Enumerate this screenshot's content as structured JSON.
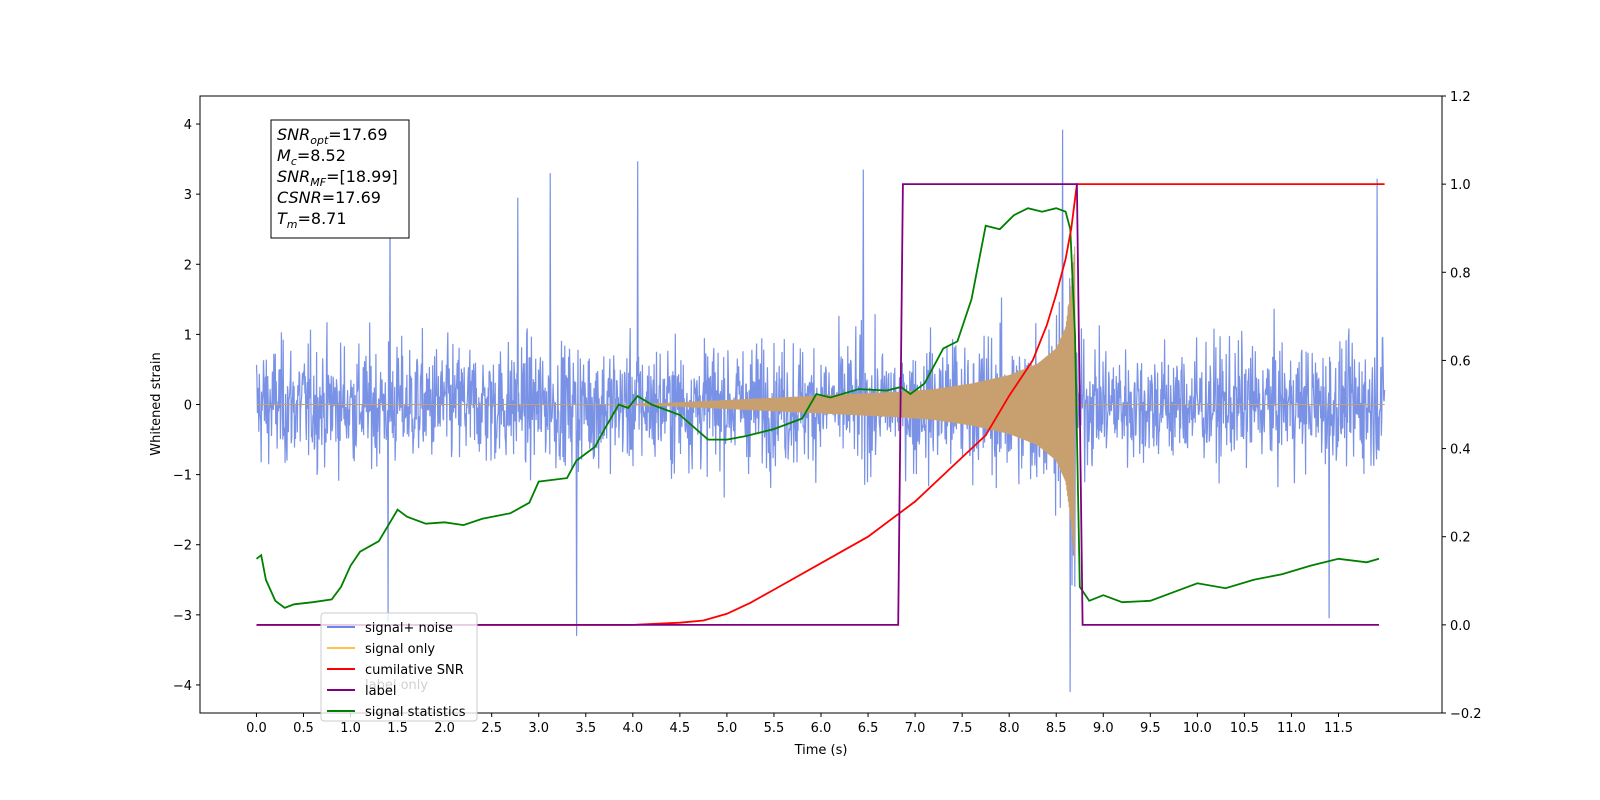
{
  "chart_data": {
    "type": "line",
    "xlabel": "Time (s)",
    "ylabel": "Whitened strain",
    "xlim": [
      -0.6,
      12.6
    ],
    "ylim": [
      -4.4,
      4.4
    ],
    "y2lim": [
      -0.2,
      1.2
    ],
    "x_ticks": [
      "0.0",
      "0.5",
      "1.0",
      "1.5",
      "2.0",
      "2.5",
      "3.0",
      "3.5",
      "4.0",
      "4.5",
      "5.0",
      "5.5",
      "6.0",
      "6.5",
      "7.0",
      "7.5",
      "8.0",
      "8.5",
      "9.0",
      "9.5",
      "10.0",
      "10.5",
      "11.0",
      "11.5"
    ],
    "y_ticks": [
      "-4",
      "-3",
      "-2",
      "-1",
      "0",
      "1",
      "2",
      "3",
      "4"
    ],
    "y2_ticks": [
      "-0.2",
      "0.0",
      "0.2",
      "0.4",
      "0.6",
      "0.8",
      "1.0",
      "1.2"
    ],
    "info_box": [
      {
        "base": "SNR",
        "sub": "opt",
        "rest": "=17.69"
      },
      {
        "base": "M",
        "sub": "c",
        "rest": "=8.52"
      },
      {
        "base": "SNR",
        "sub": "MF",
        "rest": "=[18.99]"
      },
      {
        "base": "CSNR",
        "sub": "",
        "rest": "=17.69"
      },
      {
        "base": "T",
        "sub": "m",
        "rest": "=8.71"
      }
    ],
    "legend": {
      "placement": "lower-left",
      "entries": [
        {
          "label": "signal+ noise",
          "color": "#6b86e3"
        },
        {
          "label": "signal only",
          "color": "#ffc04d"
        },
        {
          "label": "cumilative SNR",
          "color": "#ff0000"
        },
        {
          "label": "label",
          "color": "#800080"
        },
        {
          "label": "signal statistics",
          "color": "#008000"
        }
      ],
      "ghost_text": "label only"
    },
    "series": [
      {
        "name": "signal+ noise",
        "color": "#6b86e3",
        "axis": "left",
        "t_range": [
          0.0,
          11.99
        ],
        "noise_band": [
          -1.6,
          1.6
        ],
        "spikes": [
          {
            "x": 1.42,
            "y": 2.85
          },
          {
            "x": 2.78,
            "y": 2.95
          },
          {
            "x": 3.12,
            "y": 3.3
          },
          {
            "x": 4.05,
            "y": 3.47
          },
          {
            "x": 6.45,
            "y": 3.35
          },
          {
            "x": 8.57,
            "y": 3.92
          },
          {
            "x": 11.91,
            "y": 3.22
          },
          {
            "x": 1.4,
            "y": -3.1
          },
          {
            "x": 3.4,
            "y": -3.3
          },
          {
            "x": 8.65,
            "y": -4.1
          },
          {
            "x": 11.4,
            "y": -3.05
          }
        ]
      },
      {
        "name": "signal only",
        "color": "#c8a070",
        "axis": "left",
        "envelope_t": [
          6.8,
          7.2,
          7.6,
          8.0,
          8.3,
          8.5,
          8.6,
          8.65,
          8.7
        ],
        "envelope_amp": [
          0.18,
          0.22,
          0.3,
          0.42,
          0.58,
          0.8,
          1.1,
          1.6,
          2.3
        ]
      },
      {
        "name": "cumilative SNR",
        "color": "#ff0000",
        "axis": "right",
        "x": [
          0.0,
          4.0,
          4.5,
          4.75,
          5.0,
          5.25,
          5.5,
          6.0,
          6.5,
          7.0,
          7.5,
          7.75,
          8.0,
          8.25,
          8.4,
          8.5,
          8.6,
          8.66,
          8.72,
          11.99
        ],
        "y": [
          0.0,
          0.0,
          0.005,
          0.01,
          0.025,
          0.05,
          0.08,
          0.14,
          0.2,
          0.28,
          0.38,
          0.43,
          0.52,
          0.6,
          0.68,
          0.75,
          0.83,
          0.9,
          1.0,
          1.0
        ]
      },
      {
        "name": "label",
        "color": "#800080",
        "axis": "right",
        "x": [
          0.0,
          6.82,
          6.87,
          8.72,
          8.78,
          11.93
        ],
        "y": [
          0.0,
          0.0,
          1.0,
          1.0,
          0.0,
          0.0
        ]
      },
      {
        "name": "signal statistics",
        "color": "#008000",
        "axis": "left",
        "x": [
          0.0,
          0.05,
          0.1,
          0.2,
          0.3,
          0.4,
          0.6,
          0.8,
          0.9,
          1.0,
          1.1,
          1.3,
          1.5,
          1.6,
          1.8,
          2.0,
          2.2,
          2.4,
          2.7,
          2.9,
          3.0,
          3.3,
          3.4,
          3.6,
          3.7,
          3.85,
          3.95,
          4.05,
          4.2,
          4.5,
          4.8,
          5.0,
          5.2,
          5.5,
          5.8,
          5.95,
          6.1,
          6.4,
          6.7,
          6.85,
          6.95,
          7.1,
          7.3,
          7.45,
          7.6,
          7.75,
          7.9,
          8.05,
          8.2,
          8.35,
          8.5,
          8.6,
          8.65,
          8.7,
          8.75,
          8.85,
          9.0,
          9.2,
          9.5,
          9.8,
          10.0,
          10.3,
          10.6,
          10.9,
          11.2,
          11.5,
          11.8,
          11.93
        ],
        "y": [
          -2.2,
          -2.15,
          -2.5,
          -2.8,
          -2.9,
          -2.85,
          -2.82,
          -2.78,
          -2.6,
          -2.3,
          -2.1,
          -1.95,
          -1.5,
          -1.6,
          -1.7,
          -1.68,
          -1.72,
          -1.63,
          -1.55,
          -1.4,
          -1.1,
          -1.05,
          -0.8,
          -0.6,
          -0.35,
          0.0,
          -0.05,
          0.12,
          0.0,
          -0.15,
          -0.5,
          -0.5,
          -0.45,
          -0.35,
          -0.2,
          0.15,
          0.1,
          0.22,
          0.2,
          0.25,
          0.15,
          0.3,
          0.8,
          0.9,
          1.5,
          2.55,
          2.5,
          2.7,
          2.8,
          2.75,
          2.8,
          2.75,
          2.5,
          1.0,
          -2.6,
          -2.8,
          -2.72,
          -2.82,
          -2.8,
          -2.65,
          -2.55,
          -2.62,
          -2.5,
          -2.42,
          -2.3,
          -2.2,
          -2.25,
          -2.2
        ]
      }
    ]
  }
}
